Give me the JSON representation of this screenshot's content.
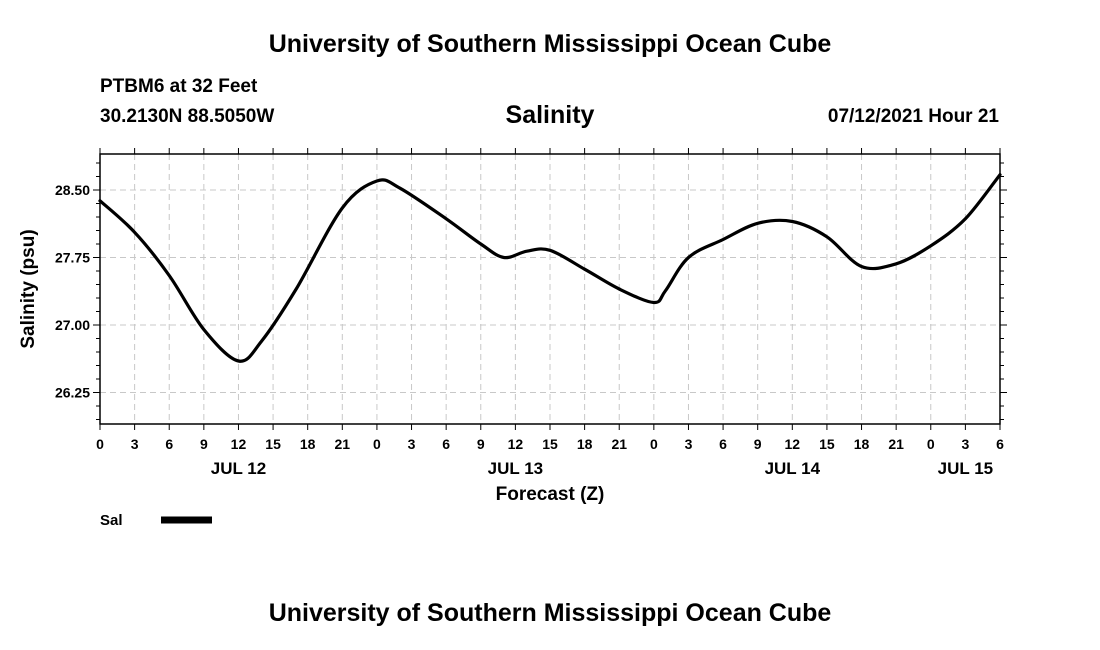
{
  "header": {
    "title": "University of Southern Mississippi Ocean Cube",
    "station": "PTBM6 at 32 Feet",
    "coords": "30.2130N  88.5050W",
    "datetime": "07/12/2021 Hour 21"
  },
  "footer": {
    "title": "University of Southern Mississippi Ocean Cube"
  },
  "colors": {
    "line": "#000000",
    "grid": "#c8c8c8",
    "frame": "#000000"
  },
  "chart_data": {
    "type": "line",
    "title": "Salinity",
    "xlabel": "Forecast (Z)",
    "ylabel": "Salinity (psu)",
    "grid": true,
    "xlim": [
      0,
      78
    ],
    "ylim": [
      25.9,
      28.9
    ],
    "x_ticks": [
      0,
      3,
      6,
      9,
      12,
      15,
      18,
      21,
      24,
      27,
      30,
      33,
      36,
      39,
      42,
      45,
      48,
      51,
      54,
      57,
      60,
      63,
      66,
      69,
      72,
      75,
      78
    ],
    "x_tick_labels": [
      "0",
      "3",
      "6",
      "9",
      "12",
      "15",
      "18",
      "21",
      "0",
      "3",
      "6",
      "9",
      "12",
      "15",
      "18",
      "21",
      "0",
      "3",
      "6",
      "9",
      "12",
      "15",
      "18",
      "21",
      "0",
      "3",
      "6"
    ],
    "date_labels": [
      {
        "x": 12,
        "label": "JUL 12"
      },
      {
        "x": 36,
        "label": "JUL 13"
      },
      {
        "x": 60,
        "label": "JUL 14"
      },
      {
        "x": 75,
        "label": "JUL 15"
      }
    ],
    "y_ticks": [
      26.25,
      27.0,
      27.75,
      28.5
    ],
    "y_tick_labels": [
      "26.25",
      "27.00",
      "27.75",
      "28.50"
    ],
    "y_minor_ticks": [
      25.95,
      26.1,
      26.4,
      26.55,
      26.7,
      26.85,
      27.15,
      27.3,
      27.45,
      27.6,
      27.9,
      28.05,
      28.2,
      28.35,
      28.65,
      28.8
    ],
    "series": [
      {
        "name": "Sal",
        "x": [
          0,
          3,
          6,
          9,
          12,
          14,
          17,
          21,
          24,
          26,
          30,
          33,
          35,
          37,
          39,
          42,
          45,
          48,
          49,
          51,
          54,
          57,
          60,
          63,
          66,
          69,
          72,
          75,
          78
        ],
        "y": [
          28.38,
          28.03,
          27.55,
          26.95,
          26.6,
          26.82,
          27.4,
          28.3,
          28.6,
          28.52,
          28.18,
          27.9,
          27.75,
          27.82,
          27.83,
          27.62,
          27.4,
          27.25,
          27.38,
          27.75,
          27.95,
          28.13,
          28.15,
          27.98,
          27.65,
          27.68,
          27.88,
          28.18,
          28.67
        ]
      }
    ],
    "legend": [
      {
        "label": "Sal"
      }
    ]
  }
}
